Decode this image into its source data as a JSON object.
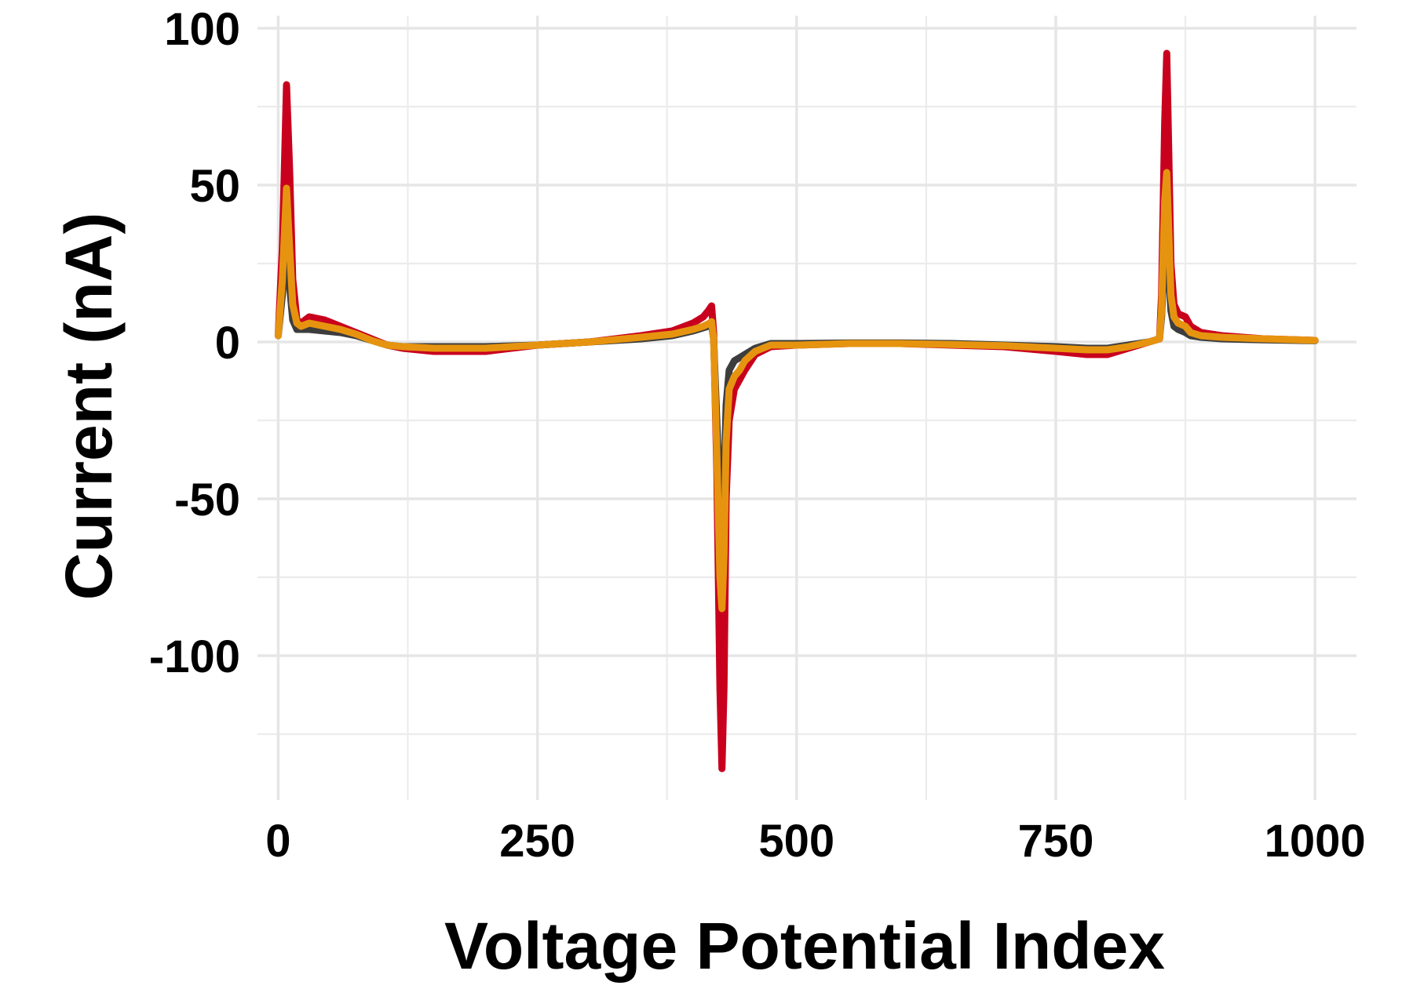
{
  "chart_data": {
    "type": "line",
    "title": "",
    "xlabel": "Voltage Potential Index",
    "ylabel": "Current (nA)",
    "xlim": [
      -20,
      1040
    ],
    "ylim": [
      -146,
      104
    ],
    "x_ticks": [
      0,
      250,
      500,
      750,
      1000
    ],
    "x_tick_labels": [
      "0",
      "250",
      "500",
      "750",
      "1000"
    ],
    "y_ticks": [
      -100,
      -50,
      0,
      50,
      100
    ],
    "y_tick_labels": [
      "-100",
      "-50",
      "0",
      "50",
      "100"
    ],
    "grid": true,
    "legend": "none",
    "series": [
      {
        "color": "#c8001e",
        "width": 9,
        "x": [
          0,
          4,
          8,
          11,
          14,
          18,
          22,
          30,
          45,
          60,
          75,
          90,
          105,
          120,
          150,
          200,
          250,
          300,
          350,
          380,
          400,
          410,
          415,
          418,
          420,
          423,
          426,
          428,
          430,
          432,
          435,
          440,
          445,
          450,
          460,
          475,
          500,
          550,
          600,
          650,
          700,
          750,
          780,
          800,
          820,
          840,
          850,
          852,
          855,
          857,
          859,
          861,
          864,
          868,
          875,
          880,
          890,
          910,
          950,
          1000
        ],
        "y": [
          2,
          30,
          82,
          55,
          20,
          7,
          6,
          8,
          7,
          5,
          3,
          1,
          -1,
          -2,
          -3,
          -3,
          -1,
          0,
          2,
          3.5,
          6,
          8,
          10,
          11.5,
          3,
          -40,
          -110,
          -136,
          -110,
          -50,
          -25,
          -15,
          -12,
          -9,
          -4,
          -1.5,
          -1,
          -0.5,
          -0.5,
          -1,
          -1.5,
          -3,
          -4,
          -4,
          -2,
          0,
          1,
          15,
          70,
          92,
          60,
          25,
          12,
          9,
          8,
          5,
          3,
          2,
          1,
          0.5
        ]
      },
      {
        "color": "#3d3d3d",
        "width": 9,
        "x": [
          0,
          4,
          8,
          11,
          14,
          18,
          22,
          30,
          45,
          60,
          75,
          90,
          105,
          120,
          150,
          200,
          250,
          300,
          350,
          380,
          400,
          410,
          415,
          418,
          420,
          423,
          426,
          428,
          430,
          432,
          435,
          440,
          445,
          450,
          460,
          475,
          500,
          550,
          600,
          650,
          700,
          750,
          780,
          800,
          820,
          840,
          850,
          852,
          855,
          857,
          859,
          861,
          864,
          868,
          875,
          880,
          890,
          910,
          950,
          1000
        ],
        "y": [
          2,
          15,
          32,
          18,
          7,
          4,
          4,
          4,
          3.5,
          3,
          2,
          0.5,
          -1,
          -1.5,
          -1.5,
          -1.5,
          -1,
          0,
          1,
          2,
          3.5,
          4.5,
          5,
          5.5,
          1,
          -25,
          -50,
          -60,
          -45,
          -20,
          -9,
          -6,
          -5,
          -4,
          -2,
          -0.5,
          -0.5,
          -0.3,
          -0.3,
          -0.5,
          -1,
          -1.5,
          -2,
          -2,
          -1,
          0,
          1,
          8,
          30,
          36,
          22,
          10,
          5,
          4,
          3,
          2,
          1.5,
          1,
          0.7,
          0.4
        ]
      },
      {
        "color": "#e6940f",
        "width": 9,
        "x": [
          0,
          4,
          8,
          11,
          14,
          18,
          22,
          30,
          45,
          60,
          75,
          90,
          105,
          120,
          150,
          200,
          250,
          300,
          350,
          380,
          400,
          410,
          415,
          418,
          420,
          423,
          426,
          428,
          430,
          432,
          435,
          440,
          445,
          450,
          460,
          475,
          500,
          550,
          600,
          650,
          700,
          750,
          780,
          800,
          820,
          840,
          850,
          852,
          855,
          857,
          859,
          861,
          864,
          868,
          875,
          880,
          890,
          910,
          950,
          1000
        ],
        "y": [
          2,
          20,
          49,
          30,
          12,
          6,
          5,
          6,
          5,
          4,
          2.5,
          0.5,
          -1,
          -1.5,
          -2,
          -2,
          -1,
          0,
          1.5,
          2.5,
          4,
          5,
          5.8,
          6.5,
          1,
          -35,
          -75,
          -85,
          -68,
          -32,
          -15,
          -11,
          -9,
          -6,
          -3,
          -1,
          -1,
          -0.5,
          -0.5,
          -0.8,
          -1.2,
          -2,
          -2.5,
          -2.5,
          -1.5,
          0,
          1,
          10,
          45,
          54,
          35,
          15,
          8,
          6,
          5,
          3,
          2,
          1.5,
          1,
          0.5
        ]
      }
    ]
  }
}
